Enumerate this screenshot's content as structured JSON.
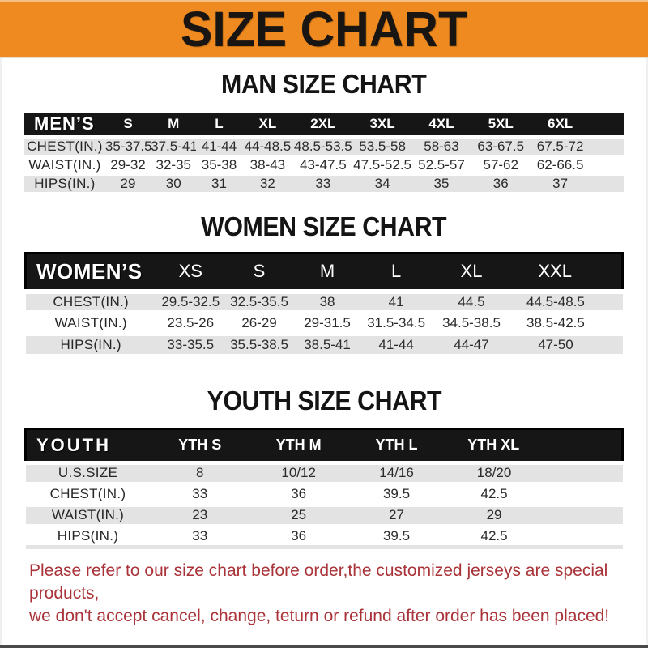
{
  "banner": {
    "title": "SIZE CHART"
  },
  "colors": {
    "banner_orange": "#ee8a1f",
    "header_bar_black": "#161616",
    "row_gray": "#e4e3e3",
    "footer_red": "#a93338"
  },
  "sections": {
    "men": {
      "heading": "MAN SIZE CHART",
      "header_label": "MEN’S",
      "columns": [
        "S",
        "M",
        "L",
        "XL",
        "2XL",
        "3XL",
        "4XL",
        "5XL",
        "6XL"
      ],
      "rows": [
        {
          "label": "CHEST(IN.)",
          "values": [
            "35-37.5",
            "37.5-41",
            "41-44",
            "44-48.5",
            "48.5-53.5",
            "53.5-58",
            "58-63",
            "63-67.5",
            "67.5-72"
          ]
        },
        {
          "label": "WAIST(IN.)",
          "values": [
            "29-32",
            "32-35",
            "35-38",
            "38-43",
            "43-47.5",
            "47.5-52.5",
            "52.5-57",
            "57-62",
            "62-66.5"
          ]
        },
        {
          "label": "HIPS(IN.)",
          "values": [
            "29",
            "30",
            "31",
            "32",
            "33",
            "34",
            "35",
            "36",
            "37"
          ]
        }
      ]
    },
    "women": {
      "heading": "WOMEN SIZE CHART",
      "header_label": "WOMEN’S",
      "columns": [
        "XS",
        "S",
        "M",
        "L",
        "XL",
        "XXL"
      ],
      "rows": [
        {
          "label": "CHEST(IN.)",
          "values": [
            "29.5-32.5",
            "32.5-35.5",
            "38",
            "41",
            "44.5",
            "44.5-48.5"
          ]
        },
        {
          "label": "WAIST(IN.)",
          "values": [
            "23.5-26",
            "26-29",
            "29-31.5",
            "31.5-34.5",
            "34.5-38.5",
            "38.5-42.5"
          ]
        },
        {
          "label": "HIPS(IN.)",
          "values": [
            "33-35.5",
            "35.5-38.5",
            "38.5-41",
            "41-44",
            "44-47",
            "47-50"
          ]
        }
      ]
    },
    "youth": {
      "heading": "YOUTH SIZE CHART",
      "header_label": "YOUTH",
      "columns": [
        "YTH S",
        "YTH M",
        "YTH L",
        "YTH XL"
      ],
      "rows": [
        {
          "label": "U.S.SIZE",
          "values": [
            "8",
            "10/12",
            "14/16",
            "18/20"
          ]
        },
        {
          "label": "CHEST(IN.)",
          "values": [
            "33",
            "36",
            "39.5",
            "42.5"
          ]
        },
        {
          "label": "WAIST(IN.)",
          "values": [
            "23",
            "25",
            "27",
            "29"
          ]
        },
        {
          "label": "HIPS(IN.)",
          "values": [
            "33",
            "36",
            "39.5",
            "42.5"
          ]
        }
      ]
    }
  },
  "footer": {
    "line1": "Please refer to our size chart before order,the customized jerseys are special products,",
    "line2": "we don't accept cancel, change, teturn or refund after order has been placed!"
  }
}
